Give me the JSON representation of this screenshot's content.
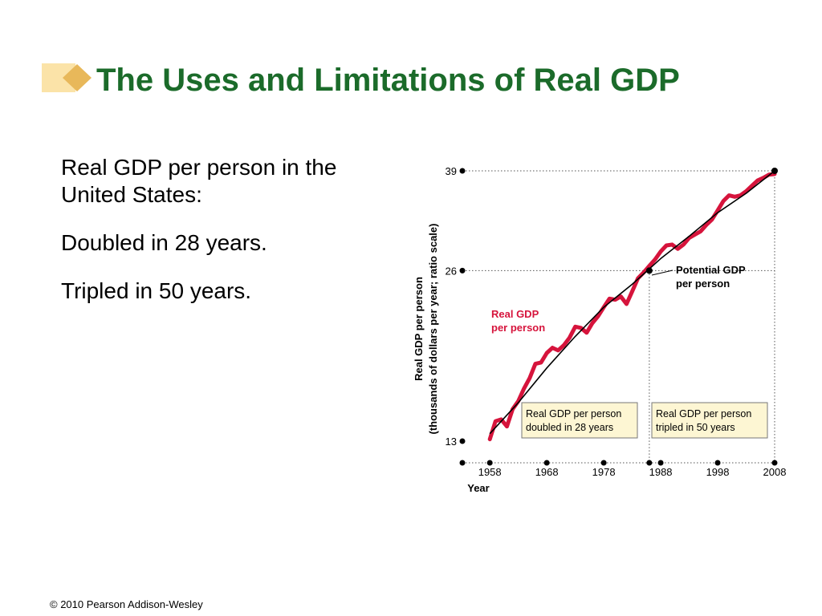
{
  "slide": {
    "title": "The Uses and Limitations of Real GDP",
    "bullets": [
      "Real GDP per person in the United States:",
      "Doubled in 28 years.",
      "Tripled in 50 years."
    ],
    "footer": "© 2010 Pearson Addison-Wesley"
  },
  "colors": {
    "title": "#1b6b2a",
    "real_gdp": "#d6143c",
    "potential_gdp": "#000000",
    "annotation_box": "#fdf6d3",
    "deco_light": "#fbe3a8",
    "deco_dark": "#e8b85a"
  },
  "chart_data": {
    "type": "line",
    "scale": "ratio",
    "ylabel": "Real GDP per person",
    "ylabel_sub": "(thousands of dollars per year; ratio scale)",
    "xlabel": "Year",
    "x_ticks": [
      1958,
      1968,
      1978,
      1988,
      1998,
      2008
    ],
    "y_ticks": [
      13,
      26,
      39
    ],
    "xlim": [
      1956,
      2008
    ],
    "ylim": [
      13,
      39
    ],
    "series": [
      {
        "name": "Real GDP per person",
        "color": "#d6143c",
        "x": [
          1958,
          1959,
          1960,
          1961,
          1962,
          1963,
          1964,
          1965,
          1966,
          1967,
          1968,
          1969,
          1970,
          1971,
          1972,
          1973,
          1974,
          1975,
          1976,
          1977,
          1978,
          1979,
          1980,
          1981,
          1982,
          1983,
          1984,
          1985,
          1986,
          1987,
          1988,
          1989,
          1990,
          1991,
          1992,
          1993,
          1994,
          1995,
          1996,
          1997,
          1998,
          1999,
          2000,
          2001,
          2002,
          2003,
          2004,
          2005,
          2006,
          2007,
          2008
        ],
        "values": [
          13.1,
          14.1,
          14.2,
          13.8,
          14.8,
          15.3,
          16.1,
          16.8,
          17.8,
          17.9,
          18.6,
          19.0,
          18.8,
          19.2,
          19.8,
          20.7,
          20.6,
          20.2,
          21.0,
          21.6,
          22.4,
          23.2,
          23.1,
          23.4,
          22.7,
          23.9,
          25.2,
          25.8,
          26.5,
          27.2,
          28.1,
          28.8,
          28.9,
          28.4,
          28.9,
          29.7,
          30.1,
          30.5,
          31.3,
          32.0,
          33.2,
          34.5,
          35.3,
          35.1,
          35.3,
          35.9,
          36.7,
          37.5,
          37.9,
          38.4,
          38.5
        ],
        "label": "Real GDP\nper person"
      },
      {
        "name": "Potential GDP per person",
        "color": "#000000",
        "x": [
          1958,
          1963,
          1968,
          1973,
          1978,
          1983,
          1988,
          1993,
          1998,
          2003,
          2008
        ],
        "values": [
          13.4,
          15.2,
          17.5,
          19.9,
          22.4,
          24.6,
          27.3,
          29.9,
          32.9,
          35.6,
          39
        ],
        "label": "Potential GDP\nper person"
      }
    ],
    "annotations": [
      "Real GDP per person\ndoubled in 28 years",
      "Real GDP per person\ntripled in 50 years"
    ]
  }
}
